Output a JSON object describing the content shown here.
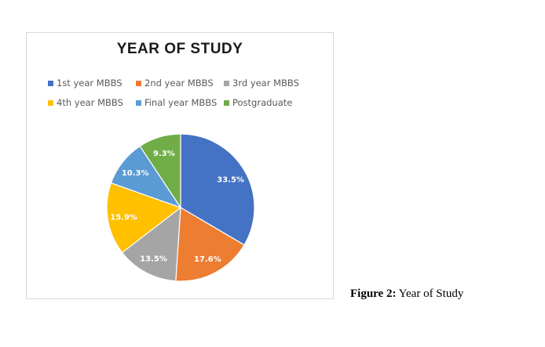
{
  "chart_data": {
    "type": "pie",
    "title": "YEAR OF STUDY",
    "categories": [
      "1st year MBBS",
      "2nd year MBBS",
      "3rd year MBBS",
      "4th year MBBS",
      "Final year MBBS",
      "Postgraduate"
    ],
    "values": [
      33.5,
      17.6,
      13.5,
      15.9,
      10.3,
      9.3
    ],
    "data_labels": [
      "33.5%",
      "17.6%",
      "13.5%",
      "15.9%",
      "10.3%",
      "9.3%"
    ],
    "colors": [
      "#4472C4",
      "#ED7D31",
      "#A5A5A5",
      "#FFC000",
      "#5B9BD5",
      "#70AD47"
    ],
    "legend_position": "top",
    "start_angle": "12 o'clock, clockwise"
  },
  "caption": {
    "label": "Figure 2:",
    "text": "Year of Study"
  }
}
